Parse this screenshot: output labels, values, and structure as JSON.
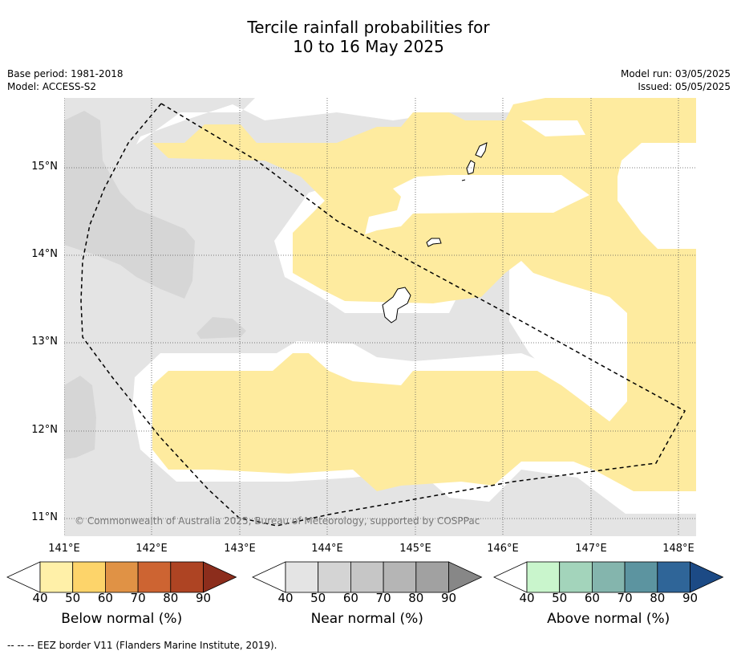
{
  "title_line1": "Tercile rainfall probabilities for",
  "title_line2": "10 to 16 May 2025",
  "base_period": "Base period: 1981-2018",
  "model": "Model: ACCESS-S2",
  "model_run": "Model run: 03/05/2025",
  "issued": "Issued: 05/05/2025",
  "copyright": "© Commonwealth of Australia 2025, Bureau of Meteorology, supported by COSPPac",
  "footer": "--  --  -- EEZ border V11 (Flanders Marine Institute, 2019).",
  "lat_ticks": [
    "15°N",
    "14°N",
    "13°N",
    "12°N",
    "11°N"
  ],
  "lon_ticks": [
    "141°E",
    "142°E",
    "143°E",
    "144°E",
    "145°E",
    "146°E",
    "147°E",
    "148°E"
  ],
  "colorbars": [
    {
      "label": "Below normal (%)",
      "ticks": [
        "40",
        "50",
        "60",
        "70",
        "80",
        "90"
      ],
      "colors": [
        "#fff0a8",
        "#fdd46a",
        "#e09245",
        "#cd6432",
        "#ae4423",
        "#8c2d1c"
      ]
    },
    {
      "label": "Near normal (%)",
      "ticks": [
        "40",
        "50",
        "60",
        "70",
        "80",
        "90"
      ],
      "colors": [
        "#e4e4e4",
        "#d4d4d4",
        "#c6c6c6",
        "#b5b5b5",
        "#a1a1a1",
        "#878787"
      ]
    },
    {
      "label": "Above normal (%)",
      "ticks": [
        "40",
        "50",
        "60",
        "70",
        "80",
        "90"
      ],
      "colors": [
        "#c9f5cc",
        "#a3d4bb",
        "#84b5ad",
        "#5c94a0",
        "#2f6598",
        "#1c4a85"
      ]
    }
  ],
  "colors": {
    "below_40": "#feeb9f",
    "near_40": "#e4e4e4",
    "near_50": "#d6d6d6"
  }
}
